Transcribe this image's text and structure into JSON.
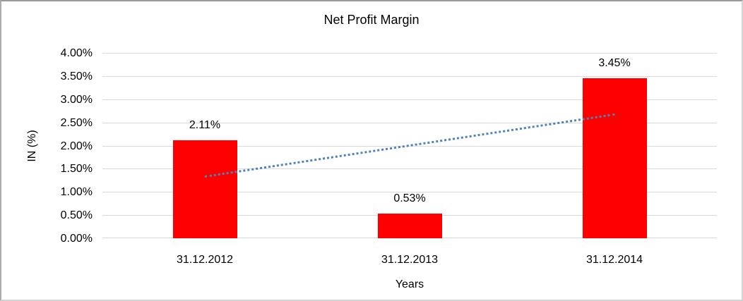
{
  "chart_data": {
    "type": "bar",
    "title": "Net Profit Margin",
    "categories": [
      "31.12.2012",
      "31.12.2013",
      "31.12.2014"
    ],
    "values": [
      2.11,
      0.53,
      3.45
    ],
    "data_labels": [
      "2.11%",
      "0.53%",
      "3.45%"
    ],
    "xlabel": "Years",
    "ylabel": "IN (%)",
    "ylim": [
      0,
      4
    ],
    "ytick_step": 0.5,
    "ytick_labels": [
      "0.00%",
      "0.50%",
      "1.00%",
      "1.50%",
      "2.00%",
      "2.50%",
      "3.00%",
      "3.50%",
      "4.00%"
    ],
    "grid": true,
    "legend": "none",
    "bar_color": "#ff0000",
    "gridline_color": "#d9d9d9",
    "text_color": "#000000",
    "trendline": {
      "type": "linear",
      "style": "dotted",
      "color": "#4f81bd",
      "start_value": 1.36,
      "end_value": 2.7
    }
  }
}
